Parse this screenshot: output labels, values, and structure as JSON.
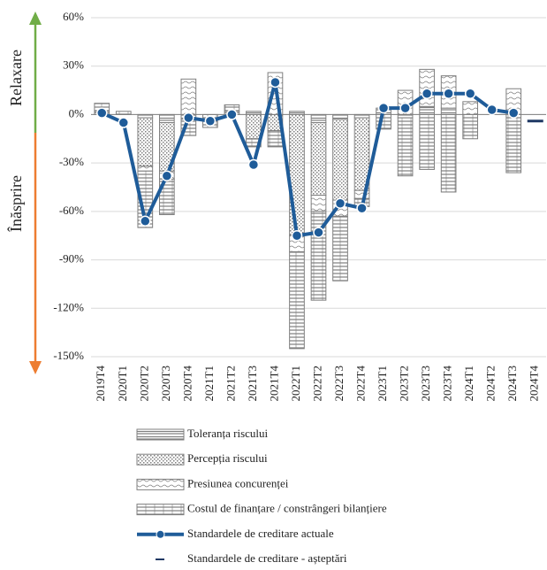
{
  "chart_data": {
    "type": "bar",
    "annotations": [
      {
        "text": "Relaxare",
        "color": "#70ad47"
      },
      {
        "text": "Înăsprire",
        "color": "#ed7d31"
      }
    ],
    "categories": [
      "2019T4",
      "2020T1",
      "2020T2",
      "2020T3",
      "2020T4",
      "2021T1",
      "2021T2",
      "2021T3",
      "2021T4",
      "2022T1",
      "2022T2",
      "2022T3",
      "2022T4",
      "2023T1",
      "2023T2",
      "2023T3",
      "2023T4",
      "2024T1",
      "2024T2",
      "2024T3",
      "2024T4"
    ],
    "ylim": [
      -150,
      60
    ],
    "yticks": [
      {
        "value": 60,
        "label": "60%"
      },
      {
        "value": 30,
        "label": "30%"
      },
      {
        "value": 0,
        "label": "0%"
      },
      {
        "value": -30,
        "label": "-30%"
      },
      {
        "value": -60,
        "label": "-60%"
      },
      {
        "value": -90,
        "label": "-90%"
      },
      {
        "value": -120,
        "label": "-120%"
      },
      {
        "value": -150,
        "label": "-150%"
      }
    ],
    "grid": true,
    "series": [
      {
        "name": "Toleranța riscului",
        "kind": "bar",
        "pattern": "double",
        "color": "#7f7f7f",
        "values": [
          2,
          0,
          -2,
          -5,
          -3,
          0,
          2,
          2,
          0,
          2,
          -5,
          -3,
          -2,
          4,
          -2,
          5,
          4,
          0,
          0,
          0,
          null
        ]
      },
      {
        "name": "Percepția riscului",
        "kind": "bar",
        "pattern": "dots",
        "color": "#7f7f7f",
        "values": [
          0,
          0,
          -30,
          -30,
          0,
          0,
          0,
          -15,
          -10,
          -75,
          -45,
          -50,
          -45,
          0,
          0,
          0,
          0,
          0,
          0,
          0,
          null
        ]
      },
      {
        "name": "Presiunea concurenței",
        "kind": "bar",
        "pattern": "wave",
        "color": "#7f7f7f",
        "values": [
          0,
          0,
          -3,
          -5,
          22,
          0,
          0,
          0,
          26,
          -10,
          -10,
          -10,
          -5,
          0,
          15,
          23,
          20,
          8,
          0,
          16,
          null
        ]
      },
      {
        "name": "Costul de finanțare / constrângeri bilanțiere",
        "kind": "bar",
        "pattern": "stripes",
        "color": "#7f7f7f",
        "values": [
          5,
          2,
          -35,
          -22,
          -10,
          -8,
          4,
          -5,
          -10,
          -60,
          -55,
          -40,
          -5,
          -9,
          -36,
          -34,
          -48,
          -15,
          0,
          -36,
          null
        ]
      },
      {
        "name": "Standardele de creditare actuale",
        "kind": "line",
        "color": "#1f5c99",
        "values": [
          1,
          -5,
          -66,
          -38,
          -2,
          -4,
          0,
          -31,
          20,
          -75,
          -73,
          -55,
          -58,
          4,
          4,
          13,
          13,
          13,
          3,
          1,
          null
        ]
      },
      {
        "name": "Standardele de creditare - așteptări",
        "kind": "dash",
        "color": "#1f3864",
        "values": [
          null,
          null,
          null,
          null,
          null,
          null,
          null,
          null,
          null,
          null,
          null,
          null,
          null,
          null,
          null,
          null,
          null,
          null,
          null,
          null,
          -4
        ]
      }
    ]
  }
}
